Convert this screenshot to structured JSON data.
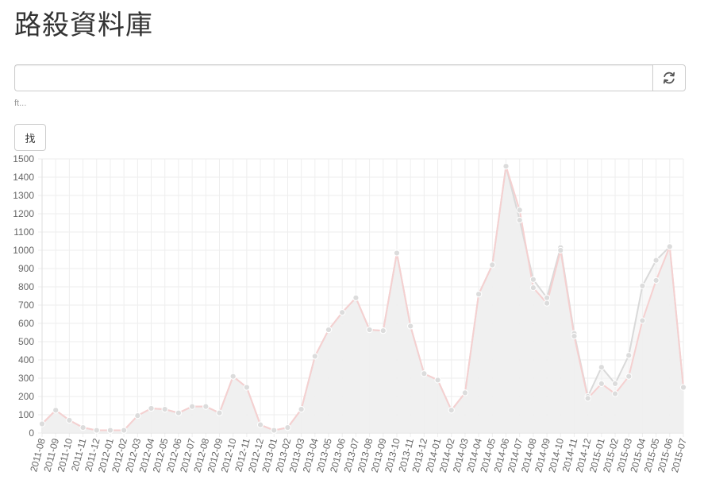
{
  "header": {
    "title": "路殺資料庫"
  },
  "search": {
    "value": "",
    "placeholder": "",
    "help_text": "ft..."
  },
  "buttons": {
    "find_label": "找",
    "refresh_icon": "refresh-icon"
  },
  "colors": {
    "series_a_line": "#f5d0d0",
    "series_b_line": "#d9d9d9",
    "fill": "#efefef",
    "point": "#dcdcdc",
    "grid": "#eeeeee"
  },
  "chart_data": {
    "type": "area",
    "title": "",
    "xlabel": "",
    "ylabel": "",
    "ylim": [
      0,
      1500
    ],
    "yticks": [
      0,
      100,
      200,
      300,
      400,
      500,
      600,
      700,
      800,
      900,
      1000,
      1100,
      1200,
      1300,
      1400,
      1500
    ],
    "grid": true,
    "categories": [
      "2011-08",
      "2011-09",
      "2011-10",
      "2011-11",
      "2011-12",
      "2012-01",
      "2012-02",
      "2012-03",
      "2012-04",
      "2012-05",
      "2012-06",
      "2012-07",
      "2012-08",
      "2012-09",
      "2012-10",
      "2012-11",
      "2012-12",
      "2013-01",
      "2013-02",
      "2013-03",
      "2013-04",
      "2013-05",
      "2013-06",
      "2013-07",
      "2013-08",
      "2013-09",
      "2013-10",
      "2013-11",
      "2013-12",
      "2014-01",
      "2014-02",
      "2014-03",
      "2014-04",
      "2014-05",
      "2014-06",
      "2014-07",
      "2014-08",
      "2014-09",
      "2014-10",
      "2014-11",
      "2014-12",
      "2015-01",
      "2015-02",
      "2015-03",
      "2015-04",
      "2015-05",
      "2015-06",
      "2015-07"
    ],
    "series": [
      {
        "values": [
          50,
          125,
          70,
          30,
          15,
          15,
          15,
          95,
          135,
          130,
          110,
          145,
          145,
          110,
          310,
          250,
          45,
          15,
          30,
          130,
          420,
          565,
          660,
          740,
          565,
          560,
          985,
          585,
          325,
          290,
          125,
          220,
          760,
          920,
          1460,
          1220,
          795,
          710,
          1000,
          530,
          190,
          270,
          215,
          310,
          615,
          835,
          1020,
          250
        ]
      },
      {
        "values": [
          50,
          125,
          70,
          30,
          15,
          15,
          15,
          95,
          135,
          130,
          110,
          145,
          145,
          110,
          310,
          250,
          45,
          15,
          30,
          130,
          420,
          565,
          660,
          740,
          565,
          560,
          985,
          585,
          325,
          290,
          125,
          220,
          760,
          920,
          1460,
          1165,
          840,
          740,
          1015,
          545,
          200,
          360,
          270,
          425,
          805,
          945,
          1020,
          250
        ]
      }
    ]
  }
}
